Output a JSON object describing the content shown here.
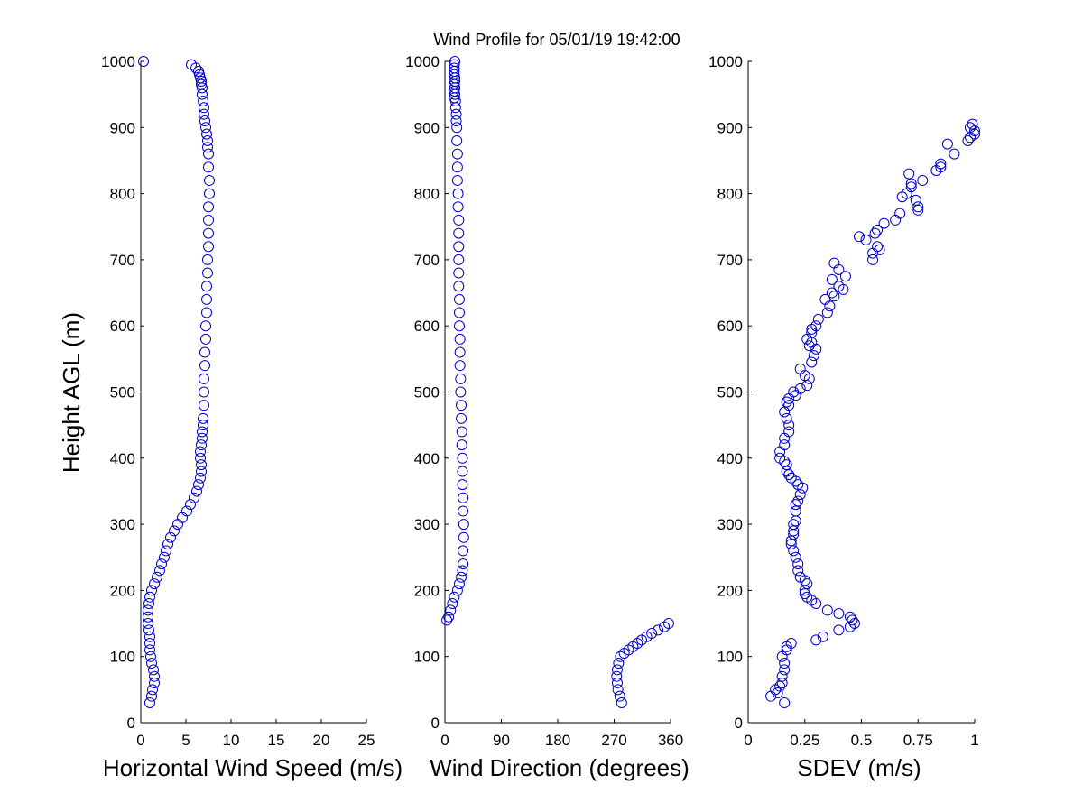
{
  "figure": {
    "title": "Wind Profile for  05/01/19 19:42:00"
  },
  "chart_data": [
    {
      "type": "scatter",
      "xlabel": "Horizontal Wind Speed (m/s)",
      "ylabel": "Height AGL (m)",
      "xlim": [
        0,
        25
      ],
      "ylim": [
        0,
        1000
      ],
      "xticks": [
        "0",
        "5",
        "10",
        "15",
        "20",
        "25"
      ],
      "yticks": [
        "0",
        "100",
        "200",
        "300",
        "400",
        "500",
        "600",
        "700",
        "800",
        "900",
        "1000"
      ],
      "grid": false,
      "color": "#0000c8",
      "x": [
        1.0,
        1.2,
        1.3,
        1.5,
        1.5,
        1.4,
        1.2,
        1.1,
        1.0,
        1.0,
        1.0,
        0.9,
        0.8,
        0.8,
        0.8,
        0.9,
        1.0,
        1.2,
        1.5,
        1.8,
        2.1,
        2.3,
        2.6,
        2.8,
        3.0,
        3.3,
        3.7,
        4.1,
        4.6,
        5.1,
        5.5,
        5.9,
        6.2,
        6.4,
        6.6,
        6.7,
        6.7,
        6.6,
        6.6,
        6.7,
        6.8,
        6.8,
        6.9,
        6.9,
        7.0,
        7.0,
        7.0,
        7.1,
        7.1,
        7.2,
        7.2,
        7.3,
        7.3,
        7.3,
        7.4,
        7.4,
        7.5,
        7.5,
        7.5,
        7.5,
        7.6,
        7.6,
        7.5,
        7.5,
        7.4,
        7.4,
        7.3,
        7.2,
        7.1,
        7.0,
        7.0,
        6.9,
        6.8,
        6.8,
        6.7,
        6.7,
        6.6,
        6.5,
        6.4,
        6.1,
        5.6,
        0.3
      ],
      "y": [
        30,
        40,
        50,
        60,
        70,
        80,
        90,
        100,
        110,
        120,
        130,
        140,
        150,
        160,
        170,
        180,
        190,
        200,
        210,
        220,
        230,
        240,
        250,
        260,
        270,
        280,
        290,
        300,
        310,
        320,
        330,
        340,
        350,
        360,
        370,
        380,
        390,
        400,
        410,
        420,
        430,
        440,
        450,
        460,
        480,
        500,
        520,
        540,
        560,
        580,
        600,
        620,
        640,
        660,
        680,
        700,
        720,
        740,
        760,
        780,
        800,
        820,
        840,
        860,
        870,
        880,
        890,
        900,
        910,
        920,
        930,
        940,
        950,
        960,
        965,
        970,
        975,
        980,
        985,
        990,
        995,
        1000
      ]
    },
    {
      "type": "scatter",
      "xlabel": "Wind Direction (degrees)",
      "ylabel": "",
      "xlim": [
        0,
        360
      ],
      "ylim": [
        0,
        1000
      ],
      "xticks": [
        "0",
        "90",
        "180",
        "270",
        "360"
      ],
      "yticks": [
        "0",
        "100",
        "200",
        "300",
        "400",
        "500",
        "600",
        "700",
        "800",
        "900",
        "1000"
      ],
      "grid": false,
      "color": "#0000c8",
      "x": [
        282,
        279,
        276,
        275,
        274,
        275,
        277,
        280,
        286,
        293,
        300,
        307,
        314,
        322,
        330,
        340,
        350,
        357,
        3,
        6,
        9,
        12,
        15,
        20,
        23,
        26,
        28,
        29,
        29,
        30,
        30,
        29,
        29,
        28,
        28,
        28,
        27,
        27,
        26,
        26,
        25,
        25,
        24,
        24,
        24,
        23,
        23,
        23,
        22,
        22,
        22,
        22,
        22,
        22,
        21,
        21,
        20,
        20,
        20,
        19,
        19,
        18,
        18,
        17,
        17,
        16,
        16,
        16,
        16,
        15,
        15,
        15,
        15,
        16,
        15,
        15,
        15
      ],
      "y": [
        30,
        40,
        50,
        60,
        70,
        80,
        90,
        100,
        105,
        110,
        115,
        120,
        125,
        130,
        135,
        140,
        145,
        150,
        155,
        160,
        170,
        180,
        190,
        200,
        210,
        220,
        230,
        240,
        260,
        280,
        300,
        320,
        340,
        360,
        380,
        400,
        420,
        440,
        460,
        480,
        500,
        520,
        540,
        560,
        580,
        600,
        620,
        640,
        660,
        680,
        700,
        720,
        740,
        760,
        780,
        800,
        820,
        840,
        860,
        880,
        900,
        910,
        920,
        930,
        940,
        950,
        960,
        970,
        975,
        980,
        985,
        990,
        995,
        1000,
        965,
        955,
        945
      ]
    },
    {
      "type": "scatter",
      "xlabel": "SDEV  (m/s)",
      "ylabel": "",
      "xlim": [
        0,
        1
      ],
      "ylim": [
        0,
        1000
      ],
      "xticks": [
        "0",
        "0.25",
        "0.5",
        "0.75",
        "1"
      ],
      "yticks": [
        "0",
        "100",
        "200",
        "300",
        "400",
        "500",
        "600",
        "700",
        "800",
        "900",
        "1000"
      ],
      "grid": false,
      "color": "#0000c8",
      "x": [
        0.16,
        0.1,
        0.13,
        0.12,
        0.14,
        0.15,
        0.15,
        0.16,
        0.16,
        0.15,
        0.17,
        0.17,
        0.19,
        0.3,
        0.33,
        0.4,
        0.45,
        0.47,
        0.46,
        0.45,
        0.4,
        0.35,
        0.3,
        0.28,
        0.26,
        0.25,
        0.25,
        0.26,
        0.25,
        0.23,
        0.22,
        0.22,
        0.21,
        0.2,
        0.19,
        0.19,
        0.2,
        0.2,
        0.2,
        0.21,
        0.21,
        0.21,
        0.22,
        0.23,
        0.24,
        0.22,
        0.21,
        0.19,
        0.18,
        0.17,
        0.17,
        0.16,
        0.14,
        0.14,
        0.16,
        0.16,
        0.18,
        0.18,
        0.17,
        0.16,
        0.18,
        0.17,
        0.18,
        0.21,
        0.2,
        0.23,
        0.26,
        0.27,
        0.25,
        0.23,
        0.28,
        0.29,
        0.3,
        0.27,
        0.28,
        0.26,
        0.28,
        0.28,
        0.3,
        0.31,
        0.35,
        0.36,
        0.34,
        0.38,
        0.37,
        0.42,
        0.4,
        0.37,
        0.43,
        0.4,
        0.38,
        0.55,
        0.55,
        0.58,
        0.57,
        0.52,
        0.49,
        0.56,
        0.57,
        0.6,
        0.65,
        0.67,
        0.75,
        0.75,
        0.74,
        0.68,
        0.7,
        0.72,
        0.72,
        0.77,
        0.71,
        0.83,
        0.85,
        0.85,
        0.91,
        0.88,
        0.97,
        0.98,
        1.0,
        1.0,
        0.98,
        0.99
      ],
      "y": [
        30,
        40,
        45,
        50,
        55,
        60,
        70,
        80,
        90,
        100,
        110,
        115,
        120,
        125,
        130,
        140,
        145,
        150,
        155,
        160,
        165,
        170,
        180,
        185,
        190,
        195,
        200,
        210,
        215,
        220,
        230,
        240,
        250,
        260,
        270,
        275,
        285,
        290,
        300,
        305,
        320,
        330,
        335,
        345,
        355,
        360,
        365,
        370,
        375,
        380,
        390,
        395,
        400,
        410,
        420,
        430,
        440,
        450,
        460,
        470,
        480,
        485,
        490,
        495,
        500,
        505,
        510,
        520,
        525,
        535,
        545,
        555,
        565,
        570,
        575,
        580,
        590,
        595,
        600,
        610,
        620,
        630,
        640,
        645,
        650,
        655,
        660,
        670,
        675,
        685,
        695,
        700,
        710,
        715,
        720,
        730,
        735,
        740,
        745,
        755,
        760,
        770,
        775,
        780,
        790,
        795,
        800,
        810,
        815,
        820,
        830,
        835,
        840,
        845,
        860,
        875,
        880,
        885,
        890,
        895,
        900,
        905
      ]
    }
  ]
}
